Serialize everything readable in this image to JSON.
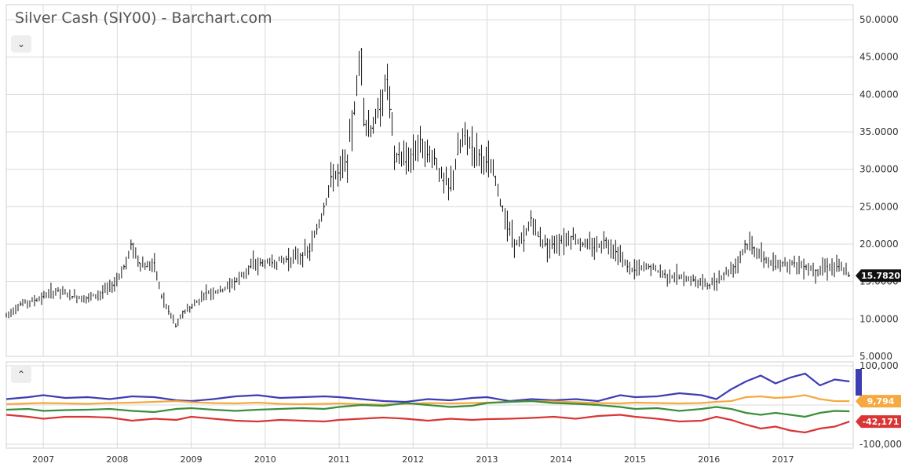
{
  "header": {
    "title": "Silver Cash (SIY00) - Barchart.com"
  },
  "controls": {
    "collapse_main_icon": "chevron-down-icon",
    "collapse_lower_icon": "chevron-up-icon"
  },
  "colors": {
    "price": "#111111",
    "grid": "#d9d9d9",
    "series_blue": "#3d3db3",
    "series_orange": "#f5a940",
    "series_green": "#3a8f3a",
    "series_red": "#d93535",
    "last_price_bg": "#111111"
  },
  "chart_data": [
    {
      "type": "bar",
      "subtype": "ohlc-price",
      "title": "Silver Cash (SIY00) - Barchart.com",
      "x_ticks": [
        "2007",
        "2008",
        "2009",
        "2010",
        "2011",
        "2012",
        "2013",
        "2014",
        "2015",
        "2016",
        "2017"
      ],
      "y_ticks": [
        "50.0000",
        "45.0000",
        "40.0000",
        "35.0000",
        "30.0000",
        "25.0000",
        "20.0000",
        "15.0000",
        "10.0000",
        "5.0000"
      ],
      "ylim": [
        5,
        52
      ],
      "x_range": [
        2006.5,
        2017.95
      ],
      "last_value_label": "15.7820",
      "grid": true,
      "x": [
        2006.5,
        2006.7,
        2006.9,
        2007.0,
        2007.2,
        2007.4,
        2007.6,
        2007.8,
        2007.95,
        2008.1,
        2008.2,
        2008.3,
        2008.4,
        2008.5,
        2008.6,
        2008.7,
        2008.8,
        2008.9,
        2009.0,
        2009.2,
        2009.4,
        2009.6,
        2009.8,
        2009.95,
        2010.1,
        2010.3,
        2010.5,
        2010.6,
        2010.7,
        2010.8,
        2010.9,
        2011.0,
        2011.1,
        2011.2,
        2011.3,
        2011.35,
        2011.45,
        2011.55,
        2011.65,
        2011.7,
        2011.75,
        2011.8,
        2011.9,
        2012.0,
        2012.1,
        2012.2,
        2012.3,
        2012.4,
        2012.5,
        2012.6,
        2012.7,
        2012.8,
        2012.9,
        2013.0,
        2013.1,
        2013.2,
        2013.3,
        2013.4,
        2013.5,
        2013.6,
        2013.7,
        2013.8,
        2013.9,
        2014.0,
        2014.15,
        2014.3,
        2014.45,
        2014.6,
        2014.75,
        2014.9,
        2015.0,
        2015.2,
        2015.4,
        2015.6,
        2015.8,
        2016.0,
        2016.1,
        2016.2,
        2016.35,
        2016.5,
        2016.6,
        2016.75,
        2016.9,
        2017.0,
        2017.15,
        2017.3,
        2017.45,
        2017.6,
        2017.75,
        2017.9
      ],
      "values": [
        10.5,
        12.0,
        12.5,
        13.0,
        13.8,
        13.0,
        12.8,
        13.5,
        14.5,
        17.0,
        20.0,
        17.5,
        17.0,
        17.5,
        13.0,
        11.0,
        9.0,
        11.0,
        11.5,
        13.5,
        13.8,
        15.0,
        17.0,
        17.5,
        17.5,
        18.0,
        18.5,
        19.0,
        22.0,
        25.0,
        29.0,
        29.5,
        31.0,
        37.5,
        46.0,
        36.0,
        35.5,
        38.0,
        42.0,
        38.0,
        31.0,
        32.0,
        31.0,
        32.0,
        34.0,
        32.0,
        31.5,
        28.5,
        27.5,
        32.0,
        34.5,
        33.0,
        32.0,
        31.0,
        29.0,
        25.0,
        22.0,
        20.0,
        20.5,
        23.5,
        21.0,
        20.0,
        20.0,
        20.5,
        21.0,
        20.0,
        19.5,
        20.5,
        19.0,
        17.0,
        16.5,
        17.0,
        16.0,
        15.5,
        15.2,
        14.5,
        15.0,
        16.0,
        17.0,
        20.0,
        19.5,
        18.0,
        17.0,
        17.5,
        17.5,
        17.0,
        16.5,
        17.0,
        17.0,
        15.8
      ],
      "series_name": ""
    },
    {
      "type": "line",
      "subtype": "commitments-of-traders",
      "y_ticks": [
        "100,000",
        "-100,000"
      ],
      "ylim": [
        -110000,
        110000
      ],
      "grid": true,
      "x": [
        2006.5,
        2006.8,
        2007.0,
        2007.3,
        2007.6,
        2007.9,
        2008.2,
        2008.5,
        2008.8,
        2009.0,
        2009.3,
        2009.6,
        2009.9,
        2010.2,
        2010.5,
        2010.8,
        2011.0,
        2011.3,
        2011.6,
        2011.9,
        2012.2,
        2012.5,
        2012.8,
        2013.0,
        2013.3,
        2013.6,
        2013.9,
        2014.2,
        2014.5,
        2014.8,
        2015.0,
        2015.3,
        2015.6,
        2015.9,
        2016.1,
        2016.3,
        2016.5,
        2016.7,
        2016.9,
        2017.1,
        2017.3,
        2017.5,
        2017.7,
        2017.9
      ],
      "series": [
        {
          "name": "",
          "color": "#3d3db3",
          "values": [
            15000,
            20000,
            25000,
            18000,
            20000,
            15000,
            22000,
            20000,
            12000,
            10000,
            15000,
            22000,
            25000,
            18000,
            20000,
            22000,
            20000,
            15000,
            10000,
            8000,
            15000,
            12000,
            18000,
            20000,
            10000,
            15000,
            12000,
            15000,
            10000,
            25000,
            20000,
            22000,
            30000,
            25000,
            15000,
            40000,
            60000,
            75000,
            55000,
            70000,
            80000,
            50000,
            65000,
            60000
          ]
        },
        {
          "name": "",
          "color": "#f5a940",
          "values": [
            2000,
            4000,
            5000,
            4000,
            3000,
            5000,
            6000,
            8000,
            10000,
            7000,
            5000,
            4000,
            6000,
            3000,
            2000,
            3000,
            4000,
            2000,
            1000,
            3000,
            5000,
            4000,
            5000,
            6000,
            8000,
            10000,
            9000,
            7000,
            5000,
            4000,
            6000,
            5000,
            4000,
            5000,
            8000,
            10000,
            20000,
            22000,
            18000,
            20000,
            25000,
            15000,
            10000,
            9794
          ]
        },
        {
          "name": "",
          "color": "#3a8f3a",
          "values": [
            -12000,
            -10000,
            -15000,
            -13000,
            -12000,
            -10000,
            -15000,
            -18000,
            -10000,
            -8000,
            -12000,
            -15000,
            -12000,
            -10000,
            -8000,
            -10000,
            -5000,
            0,
            -2000,
            5000,
            0,
            -5000,
            -2000,
            5000,
            8000,
            10000,
            5000,
            3000,
            0,
            -5000,
            -10000,
            -8000,
            -15000,
            -10000,
            -5000,
            -10000,
            -20000,
            -25000,
            -20000,
            -25000,
            -30000,
            -20000,
            -15000,
            -16000
          ]
        },
        {
          "name": "",
          "color": "#d93535",
          "values": [
            -25000,
            -30000,
            -35000,
            -30000,
            -30000,
            -32000,
            -40000,
            -35000,
            -38000,
            -30000,
            -35000,
            -40000,
            -42000,
            -38000,
            -40000,
            -42000,
            -38000,
            -35000,
            -32000,
            -35000,
            -40000,
            -35000,
            -38000,
            -36000,
            -35000,
            -33000,
            -30000,
            -35000,
            -28000,
            -25000,
            -30000,
            -35000,
            -42000,
            -40000,
            -30000,
            -38000,
            -50000,
            -60000,
            -55000,
            -65000,
            -70000,
            -60000,
            -55000,
            -42171
          ]
        }
      ],
      "last_value_labels": [
        "9,794",
        "-42,171"
      ]
    }
  ]
}
